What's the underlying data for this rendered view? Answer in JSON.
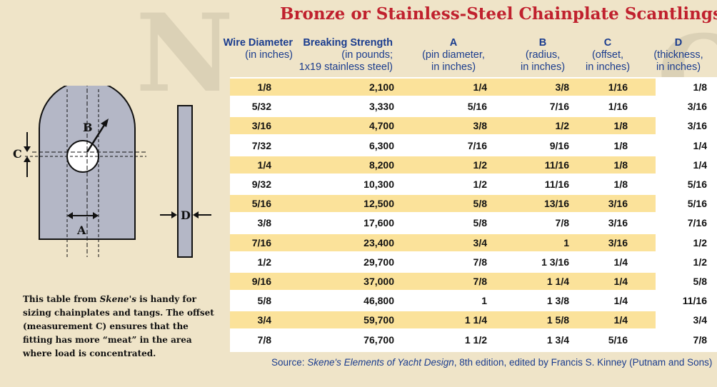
{
  "title": "Bronze or Stainless-Steel Chainplate Scantlings",
  "columns": [
    {
      "label": "Wire Diameter",
      "sub": "(in inches)"
    },
    {
      "label": "Breaking Strength",
      "sub": "(in pounds;",
      "sub2": "1x19 stainless steel)"
    },
    {
      "label": "A",
      "sub": "(pin diameter,",
      "sub2": "in inches)"
    },
    {
      "label": "B",
      "sub": "(radius,",
      "sub2": "in inches)"
    },
    {
      "label": "C",
      "sub": "(offset,",
      "sub2": "in inches)"
    },
    {
      "label": "D",
      "sub": "(thickness,",
      "sub2": "in inches)"
    }
  ],
  "rows": [
    [
      "1/8",
      "2,100",
      "1/4",
      "3/8",
      "1/16",
      "1/8"
    ],
    [
      "5/32",
      "3,330",
      "5/16",
      "7/16",
      "1/16",
      "3/16"
    ],
    [
      "3/16",
      "4,700",
      "3/8",
      "1/2",
      "1/8",
      "3/16"
    ],
    [
      "7/32",
      "6,300",
      "7/16",
      "9/16",
      "1/8",
      "1/4"
    ],
    [
      "1/4",
      "8,200",
      "1/2",
      "11/16",
      "1/8",
      "1/4"
    ],
    [
      "9/32",
      "10,300",
      "1/2",
      "11/16",
      "1/8",
      "5/16"
    ],
    [
      "5/16",
      "12,500",
      "5/8",
      "13/16",
      "3/16",
      "5/16"
    ],
    [
      "3/8",
      "17,600",
      "5/8",
      "7/8",
      "3/16",
      "7/16"
    ],
    [
      "7/16",
      "23,400",
      "3/4",
      "1",
      "3/16",
      "1/2"
    ],
    [
      "1/2",
      "29,700",
      "7/8",
      "1 3/16",
      "1/4",
      "1/2"
    ],
    [
      "9/16",
      "37,000",
      "7/8",
      "1 1/4",
      "1/4",
      "5/8"
    ],
    [
      "5/8",
      "46,800",
      "1",
      "1 3/8",
      "1/4",
      "11/16"
    ],
    [
      "3/4",
      "59,700",
      "1 1/4",
      "1 5/8",
      "1/4",
      "3/4"
    ],
    [
      "7/8",
      "76,700",
      "1 1/2",
      "1 3/4",
      "5/16",
      "7/8"
    ]
  ],
  "diagram": {
    "label_a": "A",
    "label_b": "B",
    "label_c": "C",
    "label_d": "D"
  },
  "caption": {
    "before": "This table from ",
    "book": "Skene's",
    "after": " is handy for sizing chainplates and tangs. The offset (measurement C) ensures that the fitting has more “meat” in the area where load is concentrated."
  },
  "source": {
    "prefix": "Source: ",
    "title": "Skene's Elements of Yacht Design",
    "suffix": ", 8th edition, edited by Francis S. Kinney (Putnam and Sons)"
  },
  "colors": {
    "title": "#c0212e",
    "header": "#1a3c8e",
    "stripe": "#fbe29a",
    "plate": "#b4b7c6"
  }
}
